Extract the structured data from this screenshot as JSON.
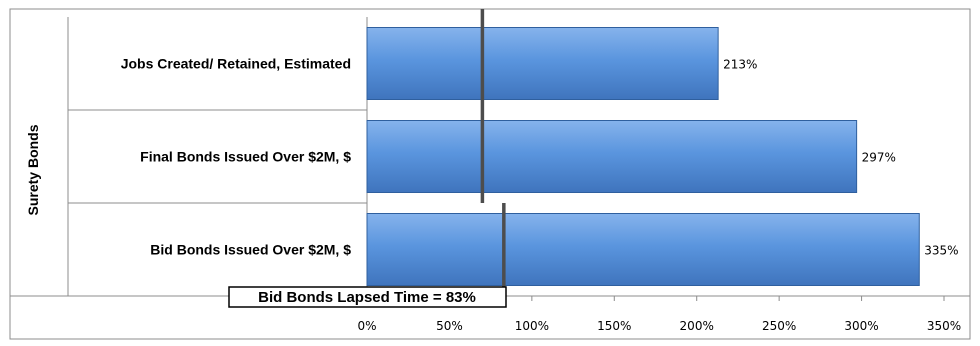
{
  "chart_data": {
    "type": "bar",
    "orientation": "horizontal",
    "group_label": "Surety Bonds",
    "categories": [
      "Jobs Created/ Retained, Estimated",
      "Final Bonds Issued Over $2M, $",
      "Bid Bonds Issued Over $2M, $"
    ],
    "values": [
      213,
      297,
      335
    ],
    "data_labels": [
      "213%",
      "297%",
      "335%"
    ],
    "x_ticks": [
      "0%",
      "50%",
      "100%",
      "150%",
      "200%",
      "250%",
      "300%",
      "350%"
    ],
    "xlim": [
      0,
      350
    ],
    "reference_lines": [
      {
        "value": 70,
        "applies_to": [
          0,
          1
        ]
      },
      {
        "value": 83,
        "applies_to": [
          2
        ]
      }
    ],
    "annotation": "Bid Bonds Lapsed Time = 83%",
    "bar_color": "#4f8fdc",
    "grid": false,
    "legend": "none"
  }
}
